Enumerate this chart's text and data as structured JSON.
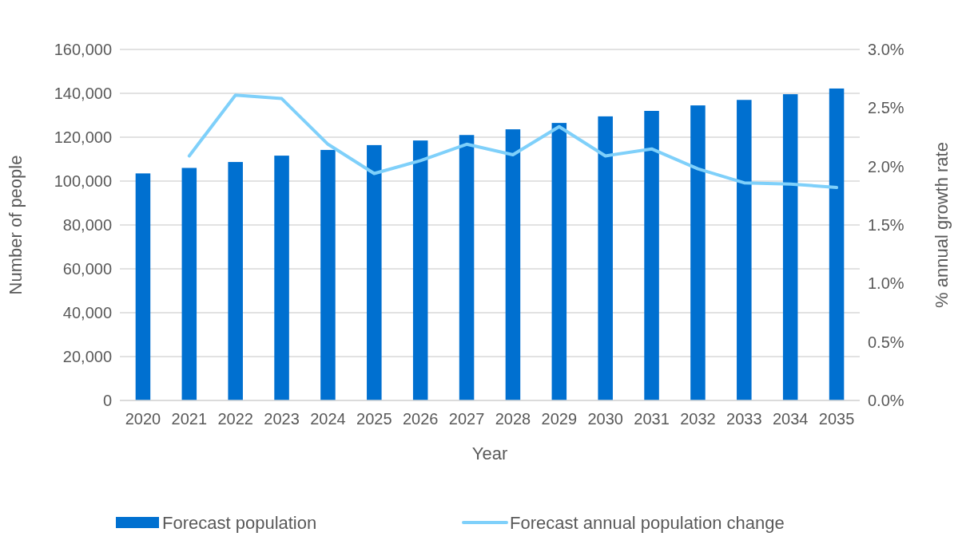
{
  "chart_data": {
    "type": "bar",
    "xlabel": "Year",
    "ylabel": "Number of people",
    "y2label": "% annual growth rate",
    "categories": [
      "2020",
      "2021",
      "2022",
      "2023",
      "2024",
      "2025",
      "2026",
      "2027",
      "2028",
      "2029",
      "2030",
      "2031",
      "2032",
      "2033",
      "2034",
      "2035"
    ],
    "series": [
      {
        "name": "Forecast population",
        "color": "#0070d0",
        "values": [
          103500,
          106000,
          108700,
          111600,
          114200,
          116400,
          118500,
          121000,
          123600,
          126500,
          129500,
          132000,
          134500,
          137000,
          139600,
          142200
        ]
      },
      {
        "name": "Forecast annual population change",
        "type": "line",
        "axis": "y2",
        "color": "#7fd0fa",
        "values": [
          null,
          2.09,
          2.61,
          2.58,
          2.19,
          1.94,
          2.05,
          2.19,
          2.1,
          2.34,
          2.09,
          2.15,
          1.98,
          1.86,
          1.85,
          1.82
        ]
      }
    ],
    "ylim": [
      0,
      160000
    ],
    "yticks": [
      {
        "value": 0,
        "label": "0"
      },
      {
        "value": 20000,
        "label": "20,000"
      },
      {
        "value": 40000,
        "label": "40,000"
      },
      {
        "value": 60000,
        "label": "60,000"
      },
      {
        "value": 80000,
        "label": "80,000"
      },
      {
        "value": 100000,
        "label": "100,000"
      },
      {
        "value": 120000,
        "label": "120,000"
      },
      {
        "value": 140000,
        "label": "140,000"
      },
      {
        "value": 160000,
        "label": "160,000"
      }
    ],
    "y2lim": [
      0,
      3
    ],
    "y2ticks": [
      {
        "value": 0,
        "label": "0.0%"
      },
      {
        "value": 0.5,
        "label": "0.5%"
      },
      {
        "value": 1,
        "label": "1.0%"
      },
      {
        "value": 1.5,
        "label": "1.5%"
      },
      {
        "value": 2,
        "label": "2.0%"
      },
      {
        "value": 2.5,
        "label": "2.5%"
      },
      {
        "value": 3,
        "label": "3.0%"
      }
    ],
    "grid": "y",
    "legend": "bottom",
    "marker": "none",
    "line_style": "solid"
  }
}
